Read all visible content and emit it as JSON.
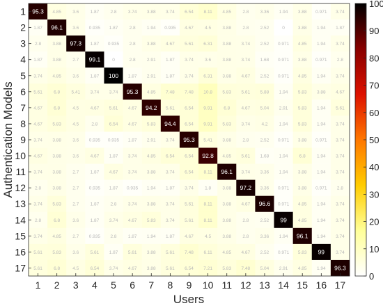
{
  "chart_data": {
    "type": "heatmap",
    "title": "",
    "xlabel": "Users",
    "ylabel": "Authentication Models",
    "x_categories": [
      "1",
      "2",
      "3",
      "4",
      "5",
      "6",
      "7",
      "8",
      "9",
      "10",
      "11",
      "12",
      "13",
      "14",
      "15",
      "16",
      "17"
    ],
    "y_categories": [
      "1",
      "2",
      "3",
      "4",
      "5",
      "6",
      "7",
      "8",
      "9",
      "10",
      "11",
      "12",
      "13",
      "14",
      "15",
      "16",
      "17"
    ],
    "colorbar": {
      "range": [
        0,
        100
      ],
      "ticks": [
        "0",
        "10",
        "20",
        "30",
        "40",
        "50",
        "60",
        "70",
        "80",
        "90",
        "100"
      ],
      "colormap": "hot-reversed",
      "stops": [
        "#ffffff",
        "#ffff99",
        "#ffcc00",
        "#ff7700",
        "#dd1100",
        "#880000",
        "#000000"
      ]
    },
    "values": [
      [
        95.3,
        4.85,
        3.6,
        1.87,
        2.8,
        3.74,
        3.88,
        3.74,
        6.54,
        8.11,
        4.85,
        2.8,
        3.36,
        1.94,
        3.88,
        0.971,
        3.74
      ],
      [
        1.87,
        96.1,
        3.6,
        0.935,
        1.87,
        2.8,
        1.94,
        0.935,
        4.67,
        4.5,
        3.88,
        2.8,
        2.52,
        0,
        3.88,
        1.94,
        1.87
      ],
      [
        2.8,
        3.88,
        97.3,
        1.87,
        0.935,
        2.8,
        3.88,
        4.67,
        5.61,
        6.31,
        3.88,
        3.74,
        2.52,
        0.971,
        4.85,
        1.94,
        3.74
      ],
      [
        1.87,
        3.88,
        2.7,
        99.1,
        0,
        2.8,
        2.91,
        1.87,
        3.74,
        3.6,
        3.88,
        3.74,
        1.68,
        0.971,
        3.88,
        0.971,
        2.8
      ],
      [
        3.74,
        4.85,
        3.6,
        1.87,
        100,
        1.87,
        2.91,
        1.87,
        3.74,
        6.31,
        3.88,
        4.67,
        2.52,
        0.971,
        4.85,
        1.94,
        3.74
      ],
      [
        5.61,
        6.8,
        5.41,
        3.74,
        3.74,
        95.3,
        4.85,
        7.48,
        7.48,
        10.8,
        5.83,
        5.61,
        5.88,
        1.94,
        5.83,
        3.88,
        4.67
      ],
      [
        4.67,
        6.8,
        4.5,
        4.67,
        5.61,
        4.67,
        94.2,
        5.61,
        6.54,
        9.91,
        6.8,
        4.67,
        5.04,
        2.91,
        5.83,
        1.94,
        5.61
      ],
      [
        4.67,
        5.83,
        4.5,
        2.8,
        6.54,
        4.67,
        5.83,
        94.4,
        6.54,
        9.91,
        5.83,
        3.74,
        4.2,
        1.94,
        5.83,
        1.94,
        3.74
      ],
      [
        3.74,
        3.88,
        3.6,
        0.935,
        0.935,
        1.87,
        2.91,
        3.74,
        95.3,
        5.41,
        3.88,
        2.8,
        2.52,
        0.971,
        3.88,
        0.971,
        3.74
      ],
      [
        4.67,
        3.88,
        3.6,
        4.67,
        1.87,
        3.74,
        4.85,
        6.54,
        6.54,
        92.8,
        4.85,
        5.61,
        1.68,
        1.94,
        6.8,
        1.94,
        3.74
      ],
      [
        3.74,
        3.88,
        2.7,
        1.87,
        4.67,
        3.74,
        3.88,
        3.74,
        6.54,
        8.11,
        96.1,
        3.74,
        3.36,
        1.94,
        3.88,
        1.94,
        3.74
      ],
      [
        2.8,
        3.88,
        2.7,
        0.935,
        1.87,
        0.935,
        1.94,
        1.87,
        3.74,
        1.8,
        3.88,
        97.2,
        3.36,
        0.971,
        3.88,
        0.971,
        2.8
      ],
      [
        3.74,
        5.83,
        2.7,
        1.87,
        2.8,
        3.74,
        3.88,
        3.74,
        5.61,
        8.11,
        3.88,
        4.67,
        96.6,
        0.971,
        4.85,
        1.94,
        3.74
      ],
      [
        2.8,
        6.8,
        3.6,
        1.87,
        3.74,
        4.67,
        5.83,
        3.74,
        5.61,
        8.11,
        3.88,
        2.8,
        2.52,
        99,
        4.85,
        1.94,
        3.74
      ],
      [
        3.74,
        4.85,
        2.7,
        0.935,
        2.8,
        1.87,
        1.94,
        1.87,
        4.67,
        4.5,
        3.88,
        2.8,
        3.36,
        1.94,
        96.1,
        1.94,
        3.74
      ],
      [
        5.61,
        5.83,
        3.6,
        5.61,
        1.87,
        5.61,
        3.88,
        5.61,
        7.48,
        6.11,
        4.85,
        4.67,
        2.52,
        0.971,
        5.83,
        99,
        3.74
      ],
      [
        5.61,
        6.8,
        4.5,
        6.54,
        3.74,
        4.67,
        3.88,
        5.61,
        6.54,
        7.21,
        5.83,
        7.48,
        5.04,
        2.91,
        4.85,
        1.94,
        96.3
      ]
    ]
  }
}
